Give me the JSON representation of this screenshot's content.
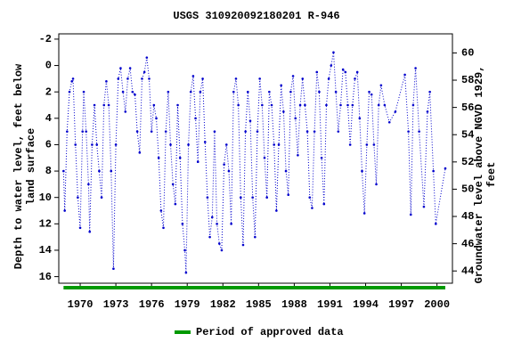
{
  "chart_data": {
    "type": "line",
    "title": "USGS 310920092180201 R-946",
    "y_label": "Depth to water level, feet below land surface",
    "y2_label": "Groundwater level above NGVD 1929, feet",
    "xlim": [
      1968.2,
      2001.3
    ],
    "xticks": [
      1970,
      1973,
      1976,
      1979,
      1982,
      1985,
      1988,
      1991,
      1994,
      1997,
      2000
    ],
    "ylim": [
      -2.4,
      16.5
    ],
    "y_inverted": true,
    "yticks": [
      -2,
      0,
      2,
      4,
      6,
      8,
      10,
      12,
      14,
      16
    ],
    "y2lim": [
      43.1,
      61.4
    ],
    "y2ticks": [
      44,
      46,
      48,
      50,
      52,
      54,
      56,
      58,
      60
    ],
    "series": [
      {
        "color": "#0000cc",
        "x": [
          1968.6,
          1968.7,
          1968.9,
          1969.1,
          1969.3,
          1969.4,
          1969.6,
          1969.8,
          1970.0,
          1970.2,
          1970.3,
          1970.5,
          1970.7,
          1970.8,
          1971.0,
          1971.2,
          1971.4,
          1971.6,
          1971.8,
          1972.0,
          1972.2,
          1972.4,
          1972.6,
          1972.8,
          1973.0,
          1973.2,
          1973.4,
          1973.6,
          1973.8,
          1974.0,
          1974.2,
          1974.4,
          1974.6,
          1974.8,
          1975.0,
          1975.2,
          1975.4,
          1975.6,
          1975.8,
          1976.0,
          1976.2,
          1976.4,
          1976.6,
          1976.8,
          1977.0,
          1977.2,
          1977.4,
          1977.6,
          1977.8,
          1978.0,
          1978.2,
          1978.4,
          1978.6,
          1978.8,
          1978.9,
          1979.1,
          1979.3,
          1979.5,
          1979.7,
          1979.9,
          1980.1,
          1980.3,
          1980.5,
          1980.7,
          1980.9,
          1981.1,
          1981.3,
          1981.5,
          1981.7,
          1981.9,
          1982.1,
          1982.3,
          1982.5,
          1982.7,
          1982.9,
          1983.1,
          1983.3,
          1983.5,
          1983.7,
          1983.9,
          1984.1,
          1984.3,
          1984.5,
          1984.7,
          1984.9,
          1985.1,
          1985.3,
          1985.5,
          1985.7,
          1985.9,
          1986.1,
          1986.3,
          1986.5,
          1986.7,
          1986.9,
          1987.1,
          1987.3,
          1987.5,
          1987.7,
          1987.9,
          1988.1,
          1988.3,
          1988.5,
          1988.7,
          1988.9,
          1989.1,
          1989.3,
          1989.5,
          1989.7,
          1989.9,
          1990.1,
          1990.3,
          1990.5,
          1990.7,
          1990.9,
          1991.1,
          1991.3,
          1991.5,
          1991.7,
          1991.9,
          1992.1,
          1992.3,
          1992.5,
          1992.7,
          1992.9,
          1993.1,
          1993.3,
          1993.5,
          1993.7,
          1993.9,
          1994.1,
          1994.3,
          1994.5,
          1994.7,
          1994.9,
          1995.1,
          1995.3,
          1995.6,
          1996.0,
          1996.5,
          1997.3,
          1997.6,
          1997.8,
          1998.0,
          1998.2,
          1998.5,
          1998.9,
          1999.2,
          1999.4,
          1999.7,
          1999.9,
          2000.7
        ],
        "values": [
          8,
          11,
          5,
          2,
          1.2,
          1,
          6,
          10,
          12.3,
          5,
          2,
          5,
          9,
          12.6,
          6,
          3,
          6,
          8,
          10,
          3,
          1.2,
          3,
          8,
          15.4,
          6,
          1,
          0.2,
          2,
          3.5,
          1,
          0.2,
          2,
          2.2,
          5,
          6.6,
          1,
          0.5,
          -0.6,
          1,
          5,
          3,
          4,
          7,
          11,
          12.3,
          5,
          2,
          6,
          9,
          10.5,
          3,
          7,
          12,
          14,
          15.7,
          6,
          2,
          0.8,
          4,
          7.3,
          2,
          1,
          5.8,
          10,
          13,
          11.5,
          5,
          12,
          13.5,
          14,
          7.5,
          6,
          8,
          12,
          2,
          1,
          3,
          10,
          13.6,
          5,
          2,
          4.2,
          10,
          13,
          5,
          1,
          3,
          7,
          10,
          2,
          3,
          6,
          11,
          6,
          1.5,
          3.5,
          8,
          9.8,
          2,
          0.8,
          4,
          6.8,
          3,
          1,
          3,
          5,
          10,
          10.8,
          5,
          0.5,
          2,
          7,
          10.5,
          3,
          1,
          0,
          -1,
          2,
          5,
          3,
          0.3,
          0.5,
          3,
          6,
          3,
          1,
          0.5,
          4,
          8,
          11.2,
          6,
          2,
          2.2,
          6,
          9,
          3,
          1.5,
          3,
          4.3,
          3.5,
          0.7,
          5,
          11.3,
          3,
          0.2,
          5,
          10.7,
          3.5,
          2,
          8,
          12,
          7.8
        ]
      }
    ],
    "approved_periods": [
      {
        "start": 1968.6,
        "end": 2000.7
      }
    ],
    "approved_color": "#009900",
    "legend": "Period of approved data"
  }
}
